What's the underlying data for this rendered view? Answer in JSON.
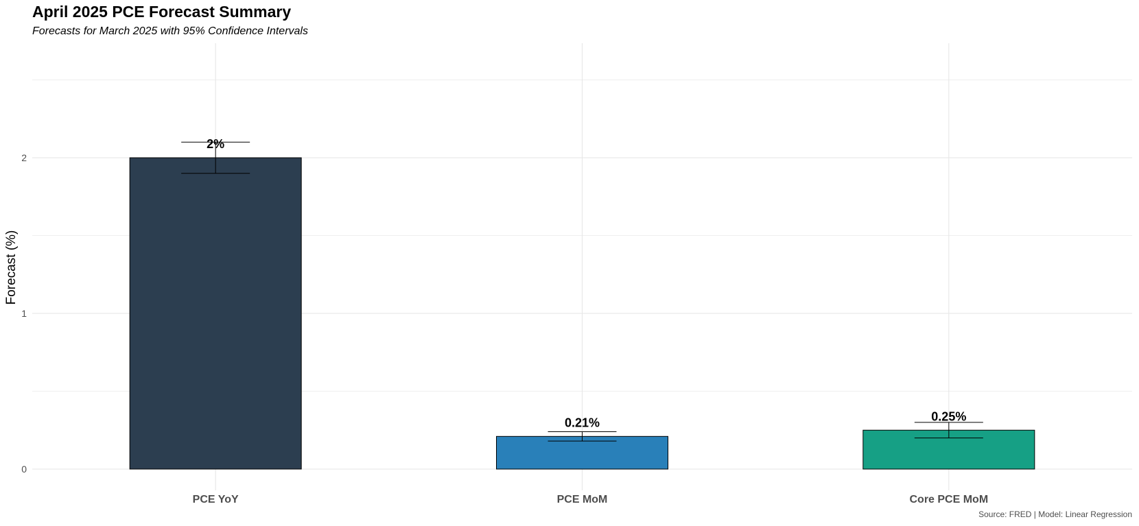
{
  "chart_data": {
    "type": "bar",
    "title": "April 2025 PCE Forecast Summary",
    "subtitle": "Forecasts for March 2025 with 95% Confidence Intervals",
    "caption": "Source: FRED | Model: Linear Regression",
    "xlabel": "",
    "ylabel": "Forecast (%)",
    "categories": [
      "PCE YoY",
      "PCE MoM",
      "Core PCE MoM"
    ],
    "values": [
      2.0,
      0.21,
      0.25
    ],
    "ci_lower": [
      1.9,
      0.18,
      0.2
    ],
    "ci_upper": [
      2.1,
      0.24,
      0.3
    ],
    "value_labels": [
      "2%",
      "0.21%",
      "0.25%"
    ],
    "colors": [
      "#2c3e50",
      "#2980b9",
      "#16a085"
    ],
    "ylim": [
      -0.08,
      2.5
    ],
    "yticks": [
      0,
      1,
      2
    ],
    "ytick_labels": [
      "0",
      "1",
      "2"
    ],
    "grid": true,
    "legend": "none"
  }
}
